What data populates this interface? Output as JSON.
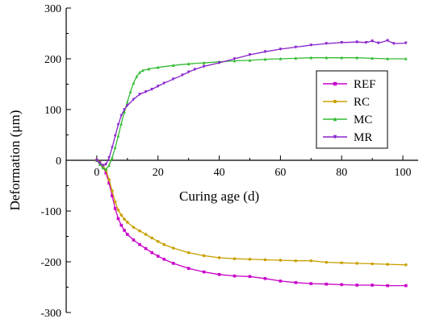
{
  "chart_data": {
    "type": "line",
    "xlabel": "Curing age (d)",
    "ylabel": "Deformation (μm)",
    "xlim": [
      -10,
      105
    ],
    "ylim": [
      -300,
      300
    ],
    "x_ticks": [
      0,
      20,
      40,
      60,
      80,
      100
    ],
    "y_ticks": [
      -300,
      -200,
      -100,
      0,
      100,
      200,
      300
    ],
    "grid": false,
    "legend_position": "right",
    "series": [
      {
        "name": "REF",
        "color": "#c800c8",
        "marker": "square",
        "points": [
          [
            0,
            0
          ],
          [
            1,
            -5
          ],
          [
            2,
            -12
          ],
          [
            3,
            -25
          ],
          [
            4,
            -45
          ],
          [
            5,
            -70
          ],
          [
            6,
            -95
          ],
          [
            7,
            -115
          ],
          [
            8,
            -128
          ],
          [
            9,
            -138
          ],
          [
            10,
            -146
          ],
          [
            12,
            -157
          ],
          [
            14,
            -166
          ],
          [
            16,
            -174
          ],
          [
            18,
            -182
          ],
          [
            20,
            -189
          ],
          [
            22,
            -195
          ],
          [
            25,
            -203
          ],
          [
            30,
            -213
          ],
          [
            35,
            -220
          ],
          [
            40,
            -225
          ],
          [
            45,
            -228
          ],
          [
            50,
            -229
          ],
          [
            55,
            -233
          ],
          [
            60,
            -238
          ],
          [
            65,
            -241
          ],
          [
            70,
            -243
          ],
          [
            75,
            -244
          ],
          [
            80,
            -245
          ],
          [
            85,
            -246
          ],
          [
            90,
            -246
          ],
          [
            95,
            -247
          ],
          [
            101,
            -247
          ]
        ]
      },
      {
        "name": "RC",
        "color": "#c8a000",
        "marker": "circle",
        "points": [
          [
            0,
            0
          ],
          [
            1,
            -4
          ],
          [
            2,
            -10
          ],
          [
            3,
            -20
          ],
          [
            4,
            -38
          ],
          [
            5,
            -60
          ],
          [
            6,
            -82
          ],
          [
            7,
            -98
          ],
          [
            8,
            -108
          ],
          [
            9,
            -116
          ],
          [
            10,
            -122
          ],
          [
            12,
            -132
          ],
          [
            14,
            -139
          ],
          [
            16,
            -146
          ],
          [
            18,
            -153
          ],
          [
            20,
            -160
          ],
          [
            22,
            -166
          ],
          [
            25,
            -173
          ],
          [
            30,
            -182
          ],
          [
            35,
            -188
          ],
          [
            40,
            -192
          ],
          [
            45,
            -194
          ],
          [
            50,
            -195
          ],
          [
            55,
            -196
          ],
          [
            60,
            -197
          ],
          [
            65,
            -198
          ],
          [
            70,
            -198
          ],
          [
            75,
            -201
          ],
          [
            80,
            -202
          ],
          [
            85,
            -203
          ],
          [
            90,
            -204
          ],
          [
            95,
            -205
          ],
          [
            101,
            -206
          ]
        ]
      },
      {
        "name": "MC",
        "color": "#33bb33",
        "marker": "triangle-up",
        "points": [
          [
            0,
            0
          ],
          [
            1,
            -8
          ],
          [
            2,
            -15
          ],
          [
            3,
            -18
          ],
          [
            4,
            -10
          ],
          [
            5,
            5
          ],
          [
            6,
            25
          ],
          [
            7,
            48
          ],
          [
            8,
            72
          ],
          [
            9,
            95
          ],
          [
            10,
            115
          ],
          [
            11,
            135
          ],
          [
            12,
            152
          ],
          [
            13,
            165
          ],
          [
            14,
            173
          ],
          [
            15,
            177
          ],
          [
            17,
            180
          ],
          [
            20,
            183
          ],
          [
            25,
            187
          ],
          [
            30,
            190
          ],
          [
            35,
            192
          ],
          [
            40,
            194
          ],
          [
            45,
            196
          ],
          [
            50,
            197
          ],
          [
            55,
            199
          ],
          [
            60,
            200
          ],
          [
            65,
            201
          ],
          [
            70,
            202
          ],
          [
            75,
            202
          ],
          [
            80,
            202
          ],
          [
            85,
            202
          ],
          [
            90,
            201
          ],
          [
            95,
            200
          ],
          [
            101,
            200
          ]
        ]
      },
      {
        "name": "MR",
        "color": "#8822cc",
        "marker": "triangle-down",
        "points": [
          [
            0,
            0
          ],
          [
            1,
            -5
          ],
          [
            2,
            -10
          ],
          [
            3,
            -8
          ],
          [
            4,
            5
          ],
          [
            5,
            25
          ],
          [
            6,
            48
          ],
          [
            7,
            70
          ],
          [
            8,
            88
          ],
          [
            9,
            100
          ],
          [
            10,
            108
          ],
          [
            12,
            120
          ],
          [
            14,
            130
          ],
          [
            16,
            135
          ],
          [
            18,
            140
          ],
          [
            20,
            146
          ],
          [
            22,
            152
          ],
          [
            25,
            160
          ],
          [
            28,
            168
          ],
          [
            30,
            174
          ],
          [
            32,
            179
          ],
          [
            35,
            185
          ],
          [
            40,
            192
          ],
          [
            45,
            200
          ],
          [
            50,
            208
          ],
          [
            55,
            214
          ],
          [
            60,
            219
          ],
          [
            65,
            223
          ],
          [
            70,
            227
          ],
          [
            75,
            230
          ],
          [
            80,
            232
          ],
          [
            85,
            233
          ],
          [
            88,
            232
          ],
          [
            90,
            235
          ],
          [
            92,
            231
          ],
          [
            95,
            236
          ],
          [
            97,
            230
          ],
          [
            101,
            231
          ]
        ]
      }
    ]
  }
}
